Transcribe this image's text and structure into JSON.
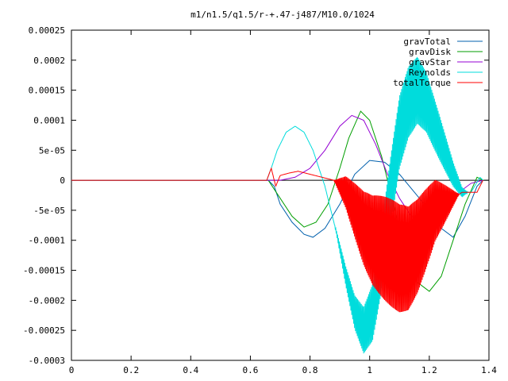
{
  "chart_data": {
    "type": "line",
    "title": "m1/n1.5/q1.5/r-+.47-j487/M10.0/1024",
    "xlabel": "",
    "ylabel": "",
    "xlim": [
      0,
      1.4
    ],
    "ylim": [
      -0.0003,
      0.00025
    ],
    "grid": false,
    "legend_position": "top-right",
    "x_ticks": [
      "0",
      "0.2",
      "0.4",
      "0.6",
      "0.8",
      "1",
      "1.2",
      "1.4"
    ],
    "y_ticks": [
      "0.00025",
      "0.0002",
      "0.00015",
      "0.0001",
      "5e-05",
      "0",
      "-5e-05",
      "-0.0001",
      "-0.00015",
      "-0.0002",
      "-0.00025",
      "-0.0003"
    ],
    "series": [
      {
        "name": "gravTotal",
        "color": "#0060ad",
        "x": [
          0,
          0.66,
          0.68,
          0.7,
          0.74,
          0.78,
          0.81,
          0.85,
          0.9,
          0.95,
          1.0,
          1.05,
          1.1,
          1.15,
          1.2,
          1.24,
          1.28,
          1.32,
          1.36,
          1.38
        ],
        "y": [
          0,
          0,
          -1e-05,
          -4e-05,
          -7e-05,
          -9e-05,
          -9.5e-05,
          -8e-05,
          -4e-05,
          1e-05,
          3.3e-05,
          3e-05,
          1e-05,
          -2e-05,
          -5e-05,
          -8e-05,
          -9.5e-05,
          -6e-05,
          -1e-05,
          0
        ]
      },
      {
        "name": "gravDisk",
        "color": "#009e00",
        "x": [
          0,
          0.66,
          0.7,
          0.74,
          0.78,
          0.82,
          0.86,
          0.9,
          0.93,
          0.97,
          1.0,
          1.04,
          1.08,
          1.12,
          1.16,
          1.2,
          1.24,
          1.28,
          1.32,
          1.36,
          1.38
        ],
        "y": [
          0,
          0,
          -3e-05,
          -6e-05,
          -7.8e-05,
          -7e-05,
          -4e-05,
          2e-05,
          7e-05,
          0.000115,
          0.0001,
          4e-05,
          -4e-05,
          -0.00012,
          -0.00017,
          -0.000185,
          -0.00016,
          -0.0001,
          -4e-05,
          5e-06,
          0
        ]
      },
      {
        "name": "gravStar",
        "color": "#9400d3",
        "x": [
          0,
          0.66,
          0.7,
          0.75,
          0.8,
          0.85,
          0.9,
          0.94,
          0.98,
          1.02,
          1.06,
          1.1,
          1.14,
          1.18,
          1.22,
          1.26,
          1.3,
          1.34,
          1.38
        ],
        "y": [
          0,
          0,
          0,
          5e-06,
          2e-05,
          5e-05,
          9e-05,
          0.000108,
          0.0001,
          6e-05,
          1e-05,
          -3e-05,
          -6e-05,
          -7e-05,
          -6e-05,
          -4e-05,
          -2e-05,
          -5e-06,
          0
        ]
      },
      {
        "name": "Reynolds",
        "color": "#00dcdc",
        "x": [
          0,
          0.655,
          0.67,
          0.69,
          0.72,
          0.75,
          0.78,
          0.81,
          0.85,
          0.89,
          0.92,
          0.95,
          0.98,
          1.01,
          1.04,
          1.07,
          1.1,
          1.13,
          1.16,
          1.19,
          1.22,
          1.25,
          1.28,
          1.31,
          1.34,
          1.37,
          1.38
        ],
        "y": [
          0,
          0,
          2e-05,
          5e-05,
          8e-05,
          9e-05,
          8e-05,
          5e-05,
          -1e-05,
          -9e-05,
          -0.00016,
          -0.00022,
          -0.00025,
          -0.00022,
          -0.00013,
          -2e-05,
          8e-05,
          0.00013,
          0.00015,
          0.00013,
          9e-05,
          5e-05,
          1e-05,
          -2e-05,
          -2e-05,
          5e-06,
          0
        ],
        "osc_from": 0.88,
        "osc_to": 1.33,
        "osc_amp": 6e-05
      },
      {
        "name": "totalTorque",
        "color": "#ff0000",
        "x": [
          0,
          0.655,
          0.67,
          0.685,
          0.7,
          0.73,
          0.76,
          0.8,
          0.84,
          0.88,
          0.92,
          0.95,
          0.98,
          1.01,
          1.04,
          1.07,
          1.1,
          1.13,
          1.16,
          1.19,
          1.22,
          1.25,
          1.28,
          1.31,
          1.34,
          1.36,
          1.38
        ],
        "y": [
          0,
          0,
          2e-05,
          -1e-05,
          8e-06,
          1.2e-05,
          1.5e-05,
          1e-05,
          5e-06,
          0,
          -2e-05,
          -5e-05,
          -8e-05,
          -0.0001,
          -0.00011,
          -0.00012,
          -0.00013,
          -0.00013,
          -0.00011,
          -8e-05,
          -5e-05,
          -4e-05,
          -3e-05,
          -2e-05,
          -2e-05,
          -2e-05,
          0
        ],
        "osc_from": 0.88,
        "osc_to": 1.3,
        "osc_amp": 9e-05
      }
    ]
  }
}
